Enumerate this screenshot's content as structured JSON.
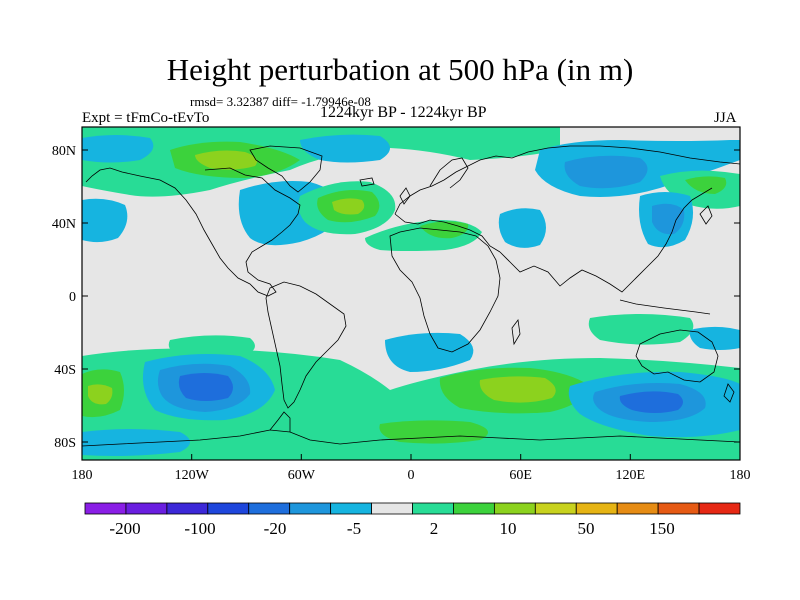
{
  "title": "Height perturbation at 500 hPa (in m)",
  "stats": "rmsd= 3.32387 diff= -1.79946e-08",
  "left_label": "Expt = tFmCo-tEvTo",
  "center_label": "1224kyr BP - 1224kyr BP",
  "right_label": "JJA",
  "lat_ticks": [
    "80N",
    "40N",
    "0",
    "40S",
    "80S"
  ],
  "lon_ticks": [
    "180",
    "120W",
    "60W",
    "0",
    "60E",
    "120E",
    "180"
  ],
  "colorbar": {
    "colors": [
      "#8a1ee6",
      "#6a1ee0",
      "#3c28d8",
      "#1e46dc",
      "#1e6edc",
      "#1e96dc",
      "#16b4e0",
      "#e6e6e6",
      "#28dc96",
      "#3cd23c",
      "#8cd21e",
      "#c8d21e",
      "#e6b414",
      "#e68c14",
      "#e65a14",
      "#e62814"
    ],
    "labels": [
      "-200",
      "-100",
      "-20",
      "-5",
      "2",
      "10",
      "50",
      "150"
    ]
  },
  "colors": {
    "neutral": "#e6e6e6",
    "light_blue": "#1e96dc",
    "cyan": "#16b4e0",
    "mid_blue": "#1e6edc",
    "blue": "#1e46dc",
    "light_green": "#28dc96",
    "green": "#3cd23c",
    "yellow_green": "#8cd21e"
  }
}
